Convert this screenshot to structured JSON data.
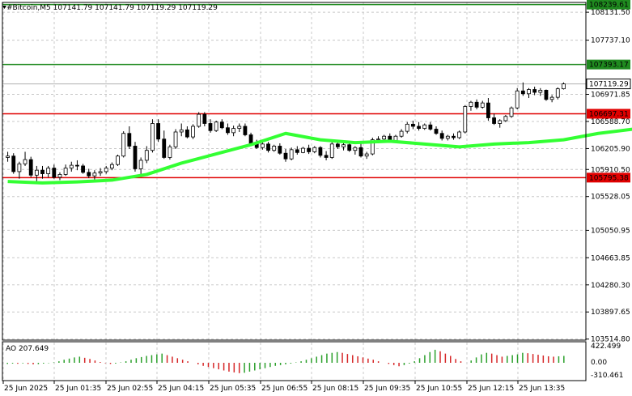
{
  "header": {
    "symbol_line": "#Bitcoin,M5  107141.79 107141.79 107119.29 107119.29"
  },
  "indicator": {
    "label": "AO 207.649",
    "max_label": "422.499",
    "zero_label": "0.00",
    "min_label": "-310.461"
  },
  "chart_data": {
    "type": "candlestick",
    "price_ticks": [
      "108131.50",
      "107737.10",
      "106971.85",
      "106588.70",
      "106205.90",
      "105910.50",
      "105528.05",
      "105050.95",
      "104663.85",
      "104280.30",
      "103897.65",
      "103514.80"
    ],
    "time_labels": [
      "25 Jun 2025",
      "25 Jun 01:35",
      "25 Jun 02:55",
      "25 Jun 04:15",
      "25 Jun 05:35",
      "25 Jun 06:55",
      "25 Jun 08:15",
      "25 Jun 09:35",
      "25 Jun 10:55",
      "25 Jun 12:15",
      "25 Jun 13:35"
    ],
    "levels": [
      {
        "name": "level-108239",
        "value": 108239.61,
        "label": "108239.61",
        "color": "#1f8a1f"
      },
      {
        "name": "level-107393",
        "value": 107393.17,
        "label": "107393.17",
        "color": "#1f8a1f"
      },
      {
        "name": "level-106697",
        "value": 106697.31,
        "label": "106697.31",
        "color": "#e00000"
      },
      {
        "name": "level-105795",
        "value": 105795.38,
        "label": "105795.38",
        "color": "#e00000"
      }
    ],
    "current_price": "107119.29",
    "colors": {
      "ma": "#33ff33",
      "ao_up": "#2ca02c",
      "ao_down": "#d62728",
      "candle": "#000000"
    },
    "ma_points": [
      [
        0,
        105740
      ],
      [
        6,
        105720
      ],
      [
        12,
        105735
      ],
      [
        18,
        105760
      ],
      [
        24,
        105840
      ],
      [
        30,
        106000
      ],
      [
        36,
        106130
      ],
      [
        42,
        106260
      ],
      [
        48,
        106420
      ],
      [
        54,
        106330
      ],
      [
        60,
        106290
      ],
      [
        66,
        106310
      ],
      [
        72,
        106270
      ],
      [
        78,
        106230
      ],
      [
        84,
        106270
      ],
      [
        90,
        106290
      ],
      [
        96,
        106330
      ],
      [
        102,
        106420
      ],
      [
        108,
        106480
      ],
      [
        114,
        106550
      ],
      [
        120,
        106660
      ],
      [
        126,
        106680
      ]
    ],
    "candles": [
      [
        106080,
        106160,
        106020,
        106100
      ],
      [
        106100,
        106140,
        105850,
        105880
      ],
      [
        105880,
        106020,
        105780,
        105990
      ],
      [
        105990,
        106160,
        105960,
        106050
      ],
      [
        106050,
        106090,
        105800,
        105830
      ],
      [
        105830,
        105960,
        105720,
        105900
      ],
      [
        105900,
        105960,
        105780,
        105850
      ],
      [
        105850,
        105960,
        105800,
        105930
      ],
      [
        105930,
        105980,
        105780,
        105800
      ],
      [
        105800,
        105870,
        105760,
        105840
      ],
      [
        105840,
        105980,
        105820,
        105930
      ],
      [
        105930,
        106020,
        105880,
        105970
      ],
      [
        105970,
        106040,
        105900,
        105960
      ],
      [
        105960,
        105990,
        105850,
        105870
      ],
      [
        105870,
        105920,
        105790,
        105820
      ],
      [
        105820,
        105900,
        105760,
        105860
      ],
      [
        105860,
        105930,
        105820,
        105880
      ],
      [
        105880,
        105960,
        105850,
        105930
      ],
      [
        105930,
        106010,
        105900,
        105980
      ],
      [
        105980,
        106120,
        105960,
        106100
      ],
      [
        106100,
        106450,
        106080,
        106420
      ],
      [
        106420,
        106520,
        106200,
        106240
      ],
      [
        106240,
        106300,
        105880,
        105920
      ],
      [
        105920,
        106080,
        105840,
        106040
      ],
      [
        106040,
        106240,
        106000,
        106180
      ],
      [
        106180,
        106620,
        106150,
        106560
      ],
      [
        106560,
        106620,
        106300,
        106340
      ],
      [
        106340,
        106460,
        106060,
        106080
      ],
      [
        106080,
        106260,
        106050,
        106230
      ],
      [
        106230,
        106480,
        106200,
        106440
      ],
      [
        106440,
        106560,
        106380,
        106470
      ],
      [
        106470,
        106520,
        106350,
        106370
      ],
      [
        106370,
        106550,
        106340,
        106520
      ],
      [
        106520,
        106720,
        106500,
        106690
      ],
      [
        106690,
        106720,
        106520,
        106560
      ],
      [
        106560,
        106620,
        106430,
        106460
      ],
      [
        106460,
        106600,
        106440,
        106580
      ],
      [
        106580,
        106620,
        106480,
        106500
      ],
      [
        106500,
        106560,
        106400,
        106430
      ],
      [
        106430,
        106530,
        106380,
        106490
      ],
      [
        106490,
        106560,
        106440,
        106520
      ],
      [
        106520,
        106560,
        106380,
        106400
      ],
      [
        106400,
        106430,
        106250,
        106270
      ],
      [
        106270,
        106330,
        106200,
        106220
      ],
      [
        106220,
        106300,
        106190,
        106270
      ],
      [
        106270,
        106300,
        106150,
        106180
      ],
      [
        106180,
        106260,
        106160,
        106240
      ],
      [
        106240,
        106280,
        106120,
        106140
      ],
      [
        106140,
        106200,
        106020,
        106060
      ],
      [
        106060,
        106220,
        106040,
        106190
      ],
      [
        106190,
        106240,
        106120,
        106150
      ],
      [
        106150,
        106230,
        106140,
        106210
      ],
      [
        106210,
        106260,
        106130,
        106160
      ],
      [
        106160,
        106240,
        106140,
        106220
      ],
      [
        106220,
        106240,
        106080,
        106110
      ],
      [
        106110,
        106170,
        106040,
        106080
      ],
      [
        106080,
        106300,
        106060,
        106270
      ],
      [
        106270,
        106320,
        106200,
        106230
      ],
      [
        106230,
        106300,
        106180,
        106260
      ],
      [
        106260,
        106310,
        106160,
        106180
      ],
      [
        106180,
        106240,
        106120,
        106220
      ],
      [
        106220,
        106280,
        106080,
        106100
      ],
      [
        106100,
        106160,
        106060,
        106130
      ],
      [
        106130,
        106360,
        106110,
        106330
      ],
      [
        106330,
        106380,
        106280,
        106340
      ],
      [
        106340,
        106400,
        106300,
        106380
      ],
      [
        106380,
        106420,
        106300,
        106320
      ],
      [
        106320,
        106400,
        106300,
        106380
      ],
      [
        106380,
        106480,
        106360,
        106450
      ],
      [
        106450,
        106580,
        106420,
        106550
      ],
      [
        106550,
        106600,
        106480,
        106520
      ],
      [
        106520,
        106580,
        106460,
        106490
      ],
      [
        106490,
        106560,
        106470,
        106540
      ],
      [
        106540,
        106580,
        106460,
        106480
      ],
      [
        106480,
        106520,
        106400,
        106420
      ],
      [
        106420,
        106460,
        106320,
        106350
      ],
      [
        106350,
        106400,
        106320,
        106380
      ],
      [
        106380,
        106420,
        106330,
        106360
      ],
      [
        106360,
        106460,
        106340,
        106440
      ],
      [
        106440,
        106820,
        106420,
        106800
      ],
      [
        106800,
        106880,
        106740,
        106860
      ],
      [
        106860,
        106900,
        106760,
        106790
      ],
      [
        106790,
        106880,
        106770,
        106850
      ],
      [
        106850,
        106920,
        106600,
        106640
      ],
      [
        106640,
        106700,
        106540,
        106560
      ],
      [
        106560,
        106620,
        106500,
        106600
      ],
      [
        106600,
        106680,
        106580,
        106660
      ],
      [
        106660,
        106800,
        106640,
        106780
      ],
      [
        106780,
        107060,
        106760,
        107020
      ],
      [
        107020,
        107140,
        106950,
        106980
      ],
      [
        106980,
        107060,
        106920,
        107040
      ],
      [
        107040,
        107080,
        106960,
        107000
      ],
      [
        107000,
        107060,
        106950,
        107030
      ],
      [
        107030,
        107040,
        106880,
        106900
      ],
      [
        106900,
        106960,
        106860,
        106930
      ],
      [
        106930,
        107070,
        106900,
        107050
      ],
      [
        107050,
        107140,
        107040,
        107119
      ]
    ],
    "ao": [
      [
        -30,
        -20,
        -25,
        -15,
        -30,
        -40,
        -35,
        -20,
        -10,
        10,
        40,
        80,
        110,
        140,
        160,
        130,
        100,
        60,
        20,
        -10,
        -30,
        -20,
        10,
        40,
        80,
        120,
        150,
        180,
        200,
        220,
        240,
        200,
        160,
        120,
        80,
        40,
        0,
        -40,
        -80,
        -110,
        -140,
        -170,
        -200,
        -230,
        -250,
        -270,
        -260,
        -230,
        -200,
        -170,
        -140,
        -110,
        -80,
        -60,
        -40,
        -20,
        10,
        40,
        80,
        120,
        160,
        200,
        240,
        260,
        280,
        260,
        230,
        200,
        170,
        140,
        110,
        80,
        40,
        0,
        -30,
        -60,
        -90,
        -60,
        -20,
        40,
        120,
        200,
        280,
        340,
        300,
        240,
        180,
        100,
        40,
        0,
        60,
        140,
        220,
        260,
        240,
        200,
        160,
        180,
        200,
        220,
        260,
        250,
        230,
        210,
        190,
        170,
        160,
        170,
        180
      ]
    ]
  }
}
